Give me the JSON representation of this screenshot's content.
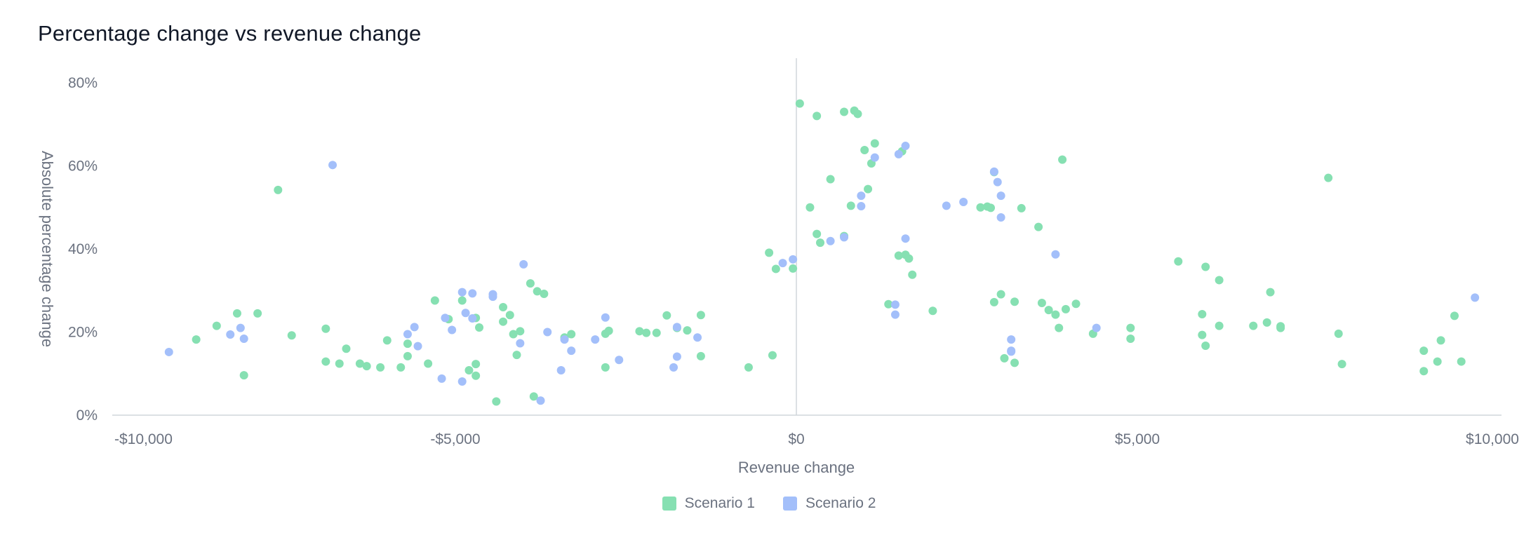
{
  "chart_data": {
    "type": "scatter",
    "title": "Percentage change vs revenue change",
    "xlabel": "Revenue change",
    "ylabel": "Absolute percentage change",
    "xlim": [
      -10000,
      10000
    ],
    "ylim": [
      0,
      80
    ],
    "x_ticks": [
      "-$10,000",
      "-$5,000",
      "$0",
      "$5,000",
      "$10,000"
    ],
    "x_tick_values": [
      -10000,
      -5000,
      0,
      5000,
      10000
    ],
    "y_ticks": [
      "0%",
      "20%",
      "40%",
      "60%",
      "80%"
    ],
    "y_tick_values": [
      0,
      20,
      40,
      60,
      80
    ],
    "grid": false,
    "legend_position": "bottom",
    "series": [
      {
        "name": "Scenario 1",
        "color": "#86e0b2",
        "points": [
          [
            -8.8,
            18.2
          ],
          [
            -8.5,
            21.5
          ],
          [
            -8.2,
            24.5
          ],
          [
            -8.1,
            9.6
          ],
          [
            -7.9,
            24.5
          ],
          [
            -7.6,
            54.2
          ],
          [
            -7.4,
            19.2
          ],
          [
            -6.9,
            20.8
          ],
          [
            -6.9,
            12.9
          ],
          [
            -6.7,
            12.4
          ],
          [
            -6.6,
            16
          ],
          [
            -6.4,
            12.4
          ],
          [
            -6.3,
            11.8
          ],
          [
            -6.1,
            11.5
          ],
          [
            -6,
            18
          ],
          [
            -5.8,
            11.5
          ],
          [
            -5.7,
            17.2
          ],
          [
            -5.7,
            14.2
          ],
          [
            -5.4,
            12.4
          ],
          [
            -5.3,
            27.6
          ],
          [
            -5.1,
            23.1
          ],
          [
            -4.9,
            27.6
          ],
          [
            -4.8,
            10.8
          ],
          [
            -4.7,
            23.4
          ],
          [
            -4.7,
            12.3
          ],
          [
            -4.7,
            9.5
          ],
          [
            -4.65,
            21.1
          ],
          [
            -4.4,
            3.3
          ],
          [
            -4.3,
            26
          ],
          [
            -4.3,
            22.5
          ],
          [
            -4.2,
            24.1
          ],
          [
            -4.15,
            19.5
          ],
          [
            -4.1,
            14.5
          ],
          [
            -4.05,
            20.2
          ],
          [
            -3.9,
            31.7
          ],
          [
            -3.85,
            4.5
          ],
          [
            -3.8,
            29.8
          ],
          [
            -3.7,
            29.2
          ],
          [
            -3.4,
            18.7
          ],
          [
            -3.3,
            19.5
          ],
          [
            -2.8,
            11.5
          ],
          [
            -2.8,
            19.6
          ],
          [
            -2.75,
            20.3
          ],
          [
            -2.3,
            20.2
          ],
          [
            -2.2,
            19.8
          ],
          [
            -2.05,
            19.8
          ],
          [
            -1.9,
            24
          ],
          [
            -1.75,
            21
          ],
          [
            -1.6,
            20.4
          ],
          [
            -1.4,
            14.2
          ],
          [
            -1.4,
            24.1
          ],
          [
            -0.7,
            11.5
          ],
          [
            -0.4,
            39.1
          ],
          [
            -0.35,
            14.4
          ],
          [
            -0.3,
            35.2
          ],
          [
            -0.05,
            35.3
          ],
          [
            0.05,
            75
          ],
          [
            0.2,
            50
          ],
          [
            0.3,
            72
          ],
          [
            0.3,
            43.6
          ],
          [
            0.35,
            41.5
          ],
          [
            0.5,
            56.8
          ],
          [
            0.7,
            73
          ],
          [
            0.7,
            43.1
          ],
          [
            0.8,
            50.4
          ],
          [
            0.85,
            73.3
          ],
          [
            0.9,
            72.5
          ],
          [
            1.0,
            63.8
          ],
          [
            1.05,
            54.4
          ],
          [
            1.1,
            60.6
          ],
          [
            1.15,
            65.4
          ],
          [
            1.35,
            26.7
          ],
          [
            1.5,
            38.4
          ],
          [
            1.55,
            63.5
          ],
          [
            1.6,
            38.6
          ],
          [
            1.65,
            37.7
          ],
          [
            1.7,
            33.8
          ],
          [
            2.0,
            25.1
          ],
          [
            2.7,
            50
          ],
          [
            2.8,
            50.2
          ],
          [
            2.85,
            49.9
          ],
          [
            2.9,
            27.2
          ],
          [
            2.9,
            58.5
          ],
          [
            3.0,
            29.1
          ],
          [
            3.05,
            13.7
          ],
          [
            3.2,
            27.3
          ],
          [
            3.2,
            12.6
          ],
          [
            3.3,
            49.8
          ],
          [
            3.55,
            45.3
          ],
          [
            3.6,
            27
          ],
          [
            3.7,
            25.3
          ],
          [
            3.8,
            24.2
          ],
          [
            3.85,
            21
          ],
          [
            3.9,
            61.5
          ],
          [
            3.95,
            25.5
          ],
          [
            4.1,
            26.8
          ],
          [
            4.35,
            19.6
          ],
          [
            4.9,
            21
          ],
          [
            4.9,
            18.4
          ],
          [
            5.6,
            37
          ],
          [
            5.95,
            24.3
          ],
          [
            5.95,
            19.3
          ],
          [
            6.0,
            35.7
          ],
          [
            6.0,
            16.7
          ],
          [
            6.2,
            32.5
          ],
          [
            6.2,
            21.5
          ],
          [
            6.7,
            21.5
          ],
          [
            6.9,
            22.3
          ],
          [
            6.95,
            29.6
          ],
          [
            7.1,
            21.4
          ],
          [
            7.1,
            21
          ],
          [
            7.8,
            57.1
          ],
          [
            7.95,
            19.6
          ],
          [
            8.0,
            12.3
          ],
          [
            9.2,
            15.5
          ],
          [
            9.2,
            10.6
          ],
          [
            9.4,
            12.9
          ],
          [
            9.45,
            18
          ],
          [
            9.65,
            23.9
          ],
          [
            9.75,
            12.9
          ]
        ]
      },
      {
        "name": "Scenario 2",
        "color": "#a3bffa",
        "points": [
          [
            -9.2,
            15.2
          ],
          [
            -8.3,
            19.4
          ],
          [
            -8.15,
            21
          ],
          [
            -8.1,
            18.4
          ],
          [
            -6.8,
            60.2
          ],
          [
            -5.7,
            19.5
          ],
          [
            -5.6,
            21.2
          ],
          [
            -5.55,
            16.6
          ],
          [
            -4.9,
            29.6
          ],
          [
            -4.75,
            29.3
          ],
          [
            -5.05,
            20.5
          ],
          [
            -5.15,
            23.4
          ],
          [
            -4.75,
            23.3
          ],
          [
            -4.85,
            24.6
          ],
          [
            -4.9,
            8.1
          ],
          [
            -5.2,
            8.8
          ],
          [
            -4.45,
            29.1
          ],
          [
            -4.45,
            28.5
          ],
          [
            -4.0,
            36.3
          ],
          [
            -4.05,
            17.3
          ],
          [
            -3.65,
            20
          ],
          [
            -3.45,
            10.8
          ],
          [
            -3.4,
            18.2
          ],
          [
            -3.3,
            15.5
          ],
          [
            -3.75,
            3.5
          ],
          [
            -2.8,
            23.5
          ],
          [
            -2.95,
            18.2
          ],
          [
            -2.6,
            13.3
          ],
          [
            -1.75,
            21.2
          ],
          [
            -1.75,
            14.1
          ],
          [
            -1.8,
            11.5
          ],
          [
            -1.45,
            18.7
          ],
          [
            -0.2,
            36.6
          ],
          [
            -0.05,
            37.5
          ],
          [
            0.5,
            41.9
          ],
          [
            0.7,
            42.8
          ],
          [
            0.95,
            52.8
          ],
          [
            0.95,
            50.3
          ],
          [
            1.15,
            62
          ],
          [
            1.45,
            26.6
          ],
          [
            1.45,
            24.2
          ],
          [
            1.5,
            62.8
          ],
          [
            1.6,
            64.8
          ],
          [
            1.6,
            42.5
          ],
          [
            2.2,
            50.4
          ],
          [
            2.45,
            51.3
          ],
          [
            2.9,
            58.6
          ],
          [
            2.95,
            56.1
          ],
          [
            3.0,
            52.8
          ],
          [
            3.0,
            47.6
          ],
          [
            3.15,
            18.2
          ],
          [
            3.15,
            15.5
          ],
          [
            3.15,
            15.3
          ],
          [
            3.8,
            38.7
          ],
          [
            4.4,
            21
          ]
        ]
      },
      {
        "name": "Scenario 2",
        "color": "#a3bffa",
        "points": [
          [
            9.95,
            28.3
          ]
        ]
      }
    ]
  },
  "legend": [
    {
      "label": "Scenario 1",
      "color": "#86e0b2"
    },
    {
      "label": "Scenario 2",
      "color": "#a3bffa"
    }
  ]
}
